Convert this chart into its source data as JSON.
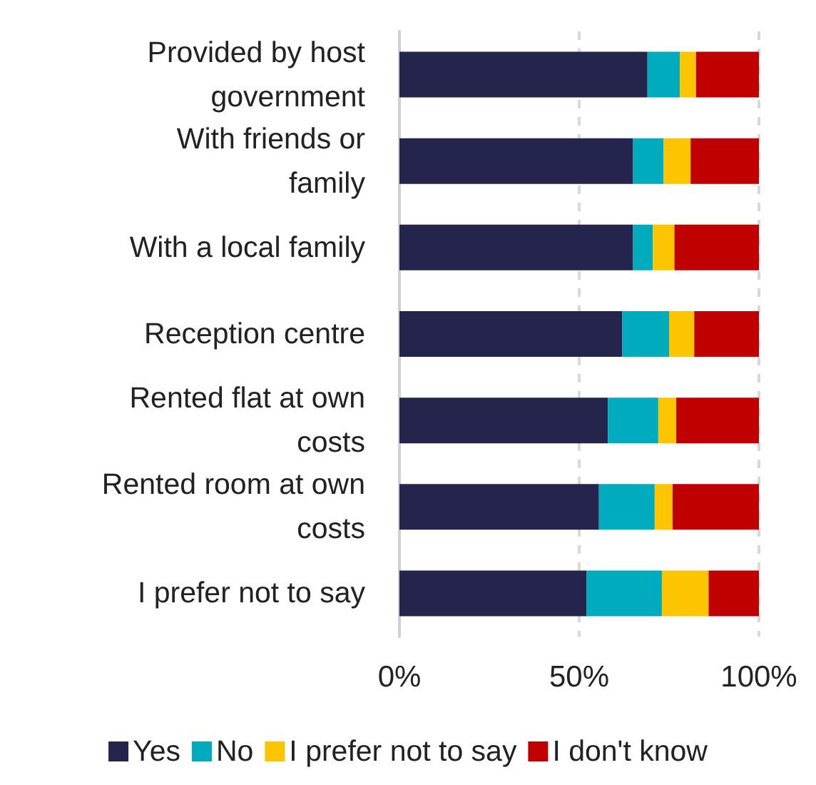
{
  "chart_data": {
    "type": "bar",
    "orientation": "horizontal",
    "stacked": true,
    "categories": [
      "Provided by host government",
      "With friends or family",
      "With a local family",
      "Reception centre",
      "Rented flat at own costs",
      "Rented room at own costs",
      "I prefer not to say"
    ],
    "series": [
      {
        "name": "Yes",
        "color": "#24244c",
        "values": [
          69,
          65,
          65,
          62,
          58,
          55.5,
          52
        ]
      },
      {
        "name": "No",
        "color": "#00abbd",
        "values": [
          9,
          8.5,
          5.5,
          13,
          14,
          15.5,
          21
        ]
      },
      {
        "name": "I prefer not to say",
        "color": "#fdc500",
        "values": [
          4.5,
          7.5,
          6,
          7,
          5,
          5,
          13
        ]
      },
      {
        "name": "I don't know",
        "color": "#c00000",
        "values": [
          17.5,
          19,
          23.5,
          18,
          23,
          24,
          14
        ]
      }
    ],
    "xlim": [
      0,
      100
    ],
    "xticks": [
      {
        "value": 0,
        "label": "0%"
      },
      {
        "value": 50,
        "label": "50%"
      },
      {
        "value": 100,
        "label": "100%"
      }
    ],
    "grid": "x",
    "legend": "bottom"
  }
}
